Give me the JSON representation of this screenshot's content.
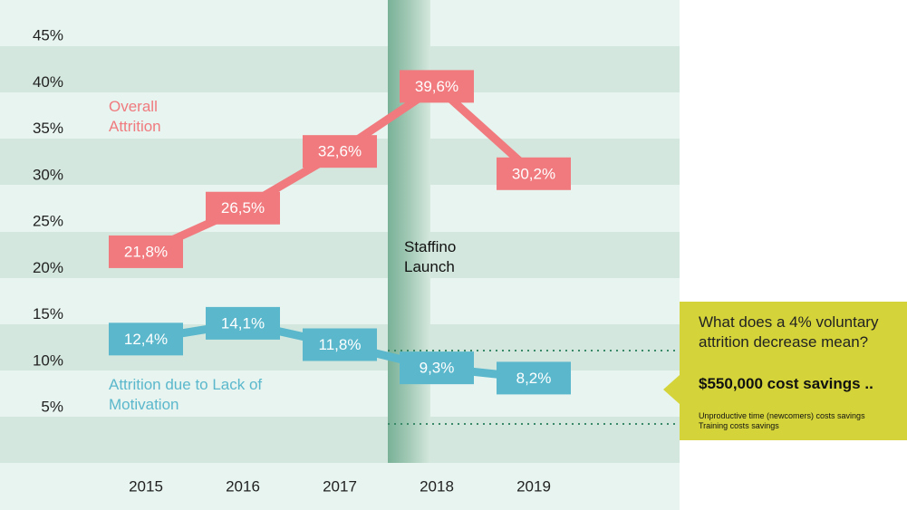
{
  "chart_data": {
    "type": "line",
    "categories": [
      "2015",
      "2016",
      "2017",
      "2018",
      "2019"
    ],
    "series": [
      {
        "name": "Overall Attrition",
        "color": "#f07a7e",
        "values": [
          21.8,
          26.5,
          32.6,
          39.6,
          30.2
        ],
        "value_labels": [
          "21,8%",
          "26,5%",
          "32,6%",
          "39,6%",
          "30,2%"
        ]
      },
      {
        "name": "Attrition due to Lack of Motivation",
        "color": "#5bb8cc",
        "values": [
          12.4,
          14.1,
          11.8,
          9.3,
          8.2
        ],
        "value_labels": [
          "12,4%",
          "14,1%",
          "11,8%",
          "9,3%",
          "8,2%"
        ]
      }
    ],
    "ylim": [
      0,
      45
    ],
    "yticks": [
      {
        "value": 5,
        "label": "5%"
      },
      {
        "value": 10,
        "label": "10%"
      },
      {
        "value": 15,
        "label": "15%"
      },
      {
        "value": 20,
        "label": "20%"
      },
      {
        "value": 25,
        "label": "25%"
      },
      {
        "value": 30,
        "label": "30%"
      },
      {
        "value": 35,
        "label": "35%"
      },
      {
        "value": 40,
        "label": "40%"
      },
      {
        "value": 45,
        "label": "45%"
      }
    ],
    "event_label": "Staffino Launch",
    "callout": {
      "question": "What does a 4% voluntary attrition decrease mean?",
      "headline": "$550,000 cost savings ..",
      "notes": [
        "Unproductive time (newcomers) costs savings",
        "Training costs savings"
      ]
    }
  }
}
